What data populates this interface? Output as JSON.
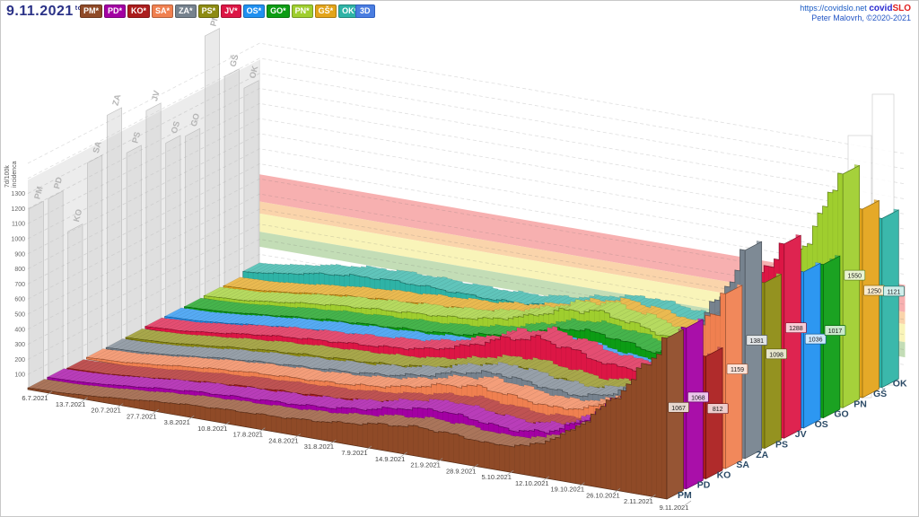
{
  "header": {
    "date": "9.11.2021",
    "date_weekday": "tor",
    "mode_button": "3D",
    "site_link": "https://covidslo.net",
    "brand": {
      "part1": "covid",
      "part2": "SLO"
    },
    "credit": "Peter Malovrh, ©2020-2021",
    "legend": [
      {
        "label": "PM*",
        "color": "#8f4a27"
      },
      {
        "label": "PD*",
        "color": "#a300a3"
      },
      {
        "label": "KO*",
        "color": "#ab1d1d"
      },
      {
        "label": "SA*",
        "color": "#f08050"
      },
      {
        "label": "ZA*",
        "color": "#76828e"
      },
      {
        "label": "PS*",
        "color": "#8d8b12"
      },
      {
        "label": "JV*",
        "color": "#dc1645"
      },
      {
        "label": "OS*",
        "color": "#2090f0"
      },
      {
        "label": "GO*",
        "color": "#0c9c14"
      },
      {
        "label": "PN*",
        "color": "#9fce2e"
      },
      {
        "label": "GŠ*",
        "color": "#e3a41a"
      },
      {
        "label": "OK*",
        "color": "#2eb3a6"
      }
    ]
  },
  "chart_data": {
    "type": "3d-ridge-histogram",
    "ylabel_line1": "7d/100k",
    "ylabel_line2": "incidenca",
    "yticks": [
      100,
      200,
      300,
      400,
      500,
      600,
      700,
      800,
      900,
      1000,
      1100,
      1200,
      1300
    ],
    "ylim": [
      0,
      1600
    ],
    "wall_top": 1390,
    "x_dates": [
      "6.7.2021",
      "13.7.2021",
      "20.7.2021",
      "27.7.2021",
      "3.8.2021",
      "10.8.2021",
      "17.8.2021",
      "24.8.2021",
      "31.8.2021",
      "7.9.2021",
      "14.9.2021",
      "21.9.2021",
      "28.9.2021",
      "5.10.2021",
      "12.10.2021",
      "19.10.2021",
      "26.10.2021",
      "2.11.2021",
      "9.11.2021"
    ],
    "bands": [
      {
        "from": 450,
        "to": 630,
        "color": "#f6a7a7"
      },
      {
        "from": 370,
        "to": 450,
        "color": "#f9cfa2"
      },
      {
        "from": 250,
        "to": 370,
        "color": "#f8f3b1"
      },
      {
        "from": 150,
        "to": 250,
        "color": "#bcd9ae"
      }
    ],
    "series": [
      {
        "code": "PM",
        "color": "#8f4a27",
        "final": 1067,
        "values": [
          12,
          18,
          35,
          55,
          75,
          88,
          96,
          104,
          118,
          142,
          175,
          195,
          185,
          165,
          192,
          300,
          500,
          755,
          1067
        ]
      },
      {
        "code": "PD",
        "color": "#a300a3",
        "final": 1068,
        "values": [
          14,
          22,
          42,
          66,
          86,
          98,
          108,
          118,
          136,
          168,
          215,
          242,
          218,
          192,
          218,
          325,
          520,
          762,
          1068
        ]
      },
      {
        "code": "KO",
        "color": "#ab1d1d",
        "final": 812,
        "values": [
          8,
          14,
          32,
          55,
          75,
          90,
          100,
          110,
          124,
          150,
          188,
          212,
          192,
          172,
          194,
          278,
          425,
          595,
          812
        ]
      },
      {
        "code": "SA",
        "color": "#f08050",
        "final": 1159,
        "values": [
          12,
          22,
          45,
          70,
          90,
          104,
          114,
          125,
          146,
          182,
          235,
          264,
          238,
          210,
          236,
          352,
          560,
          818,
          1159
        ]
      },
      {
        "code": "ZA",
        "color": "#76828e",
        "final": 1381,
        "values": [
          10,
          20,
          40,
          66,
          86,
          100,
          114,
          128,
          152,
          192,
          252,
          284,
          254,
          226,
          256,
          392,
          645,
          952,
          1381
        ]
      },
      {
        "code": "PS",
        "color": "#8d8b12",
        "final": 1098,
        "values": [
          10,
          20,
          42,
          66,
          86,
          100,
          112,
          124,
          144,
          180,
          234,
          262,
          234,
          206,
          232,
          342,
          540,
          788,
          1098
        ]
      },
      {
        "code": "JV",
        "color": "#dc1645",
        "final": 1288,
        "values": [
          16,
          28,
          55,
          85,
          108,
          124,
          140,
          158,
          190,
          252,
          340,
          385,
          345,
          285,
          295,
          425,
          645,
          925,
          1288
        ]
      },
      {
        "code": "OS",
        "color": "#2090f0",
        "final": 1036,
        "values": [
          14,
          24,
          48,
          72,
          92,
          106,
          116,
          126,
          146,
          182,
          236,
          266,
          238,
          206,
          226,
          332,
          512,
          742,
          1036
        ]
      },
      {
        "code": "GO",
        "color": "#0c9c14",
        "final": 1017,
        "values": [
          12,
          22,
          44,
          68,
          88,
          102,
          114,
          126,
          150,
          195,
          262,
          312,
          295,
          248,
          255,
          355,
          525,
          752,
          1017
        ]
      },
      {
        "code": "PN",
        "color": "#9fce2e",
        "final": 1550,
        "values": [
          18,
          30,
          58,
          88,
          110,
          126,
          142,
          158,
          188,
          245,
          325,
          362,
          322,
          272,
          302,
          472,
          752,
          1105,
          1550
        ]
      },
      {
        "code": "GŠ",
        "color": "#e3a41a",
        "final": 1250,
        "values": [
          15,
          26,
          52,
          80,
          100,
          114,
          128,
          140,
          164,
          205,
          275,
          308,
          275,
          238,
          262,
          395,
          625,
          905,
          1250
        ]
      },
      {
        "code": "OK",
        "color": "#2eb3a6",
        "final": 1121,
        "values": [
          42,
          72,
          112,
          140,
          152,
          152,
          146,
          142,
          152,
          182,
          232,
          262,
          236,
          208,
          228,
          332,
          522,
          765,
          1121
        ]
      }
    ]
  }
}
